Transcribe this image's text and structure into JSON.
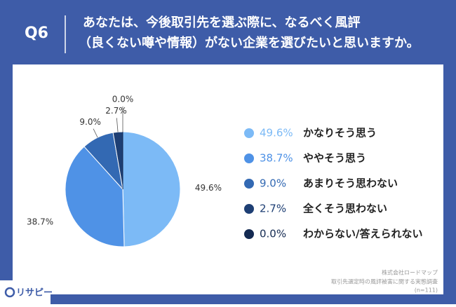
{
  "chart_data": {
    "type": "pie",
    "question_number": "Q6",
    "title": [
      "あなたは、今後取引先を選ぶ際に、なるべく風評",
      "（良くない噂や情報）がない企業を選びたいと思いますか。"
    ],
    "categories": [
      "かなりそう思う",
      "ややそう思う",
      "あまりそう思わない",
      "全くそう思わない",
      "わからない/答えられない"
    ],
    "values": [
      49.6,
      38.7,
      9.0,
      2.7,
      0.0
    ],
    "value_labels": [
      "49.6%",
      "38.7%",
      "9.0%",
      "2.7%",
      "0.0%"
    ],
    "colors": [
      "#7cbaf6",
      "#4f92e6",
      "#3369b3",
      "#1e3f74",
      "#142a52"
    ],
    "source": [
      "株式会社ロードマップ",
      "取引先選定時の風評被害に関する実態調査",
      "(n=111)"
    ],
    "brand": "リサピー"
  }
}
